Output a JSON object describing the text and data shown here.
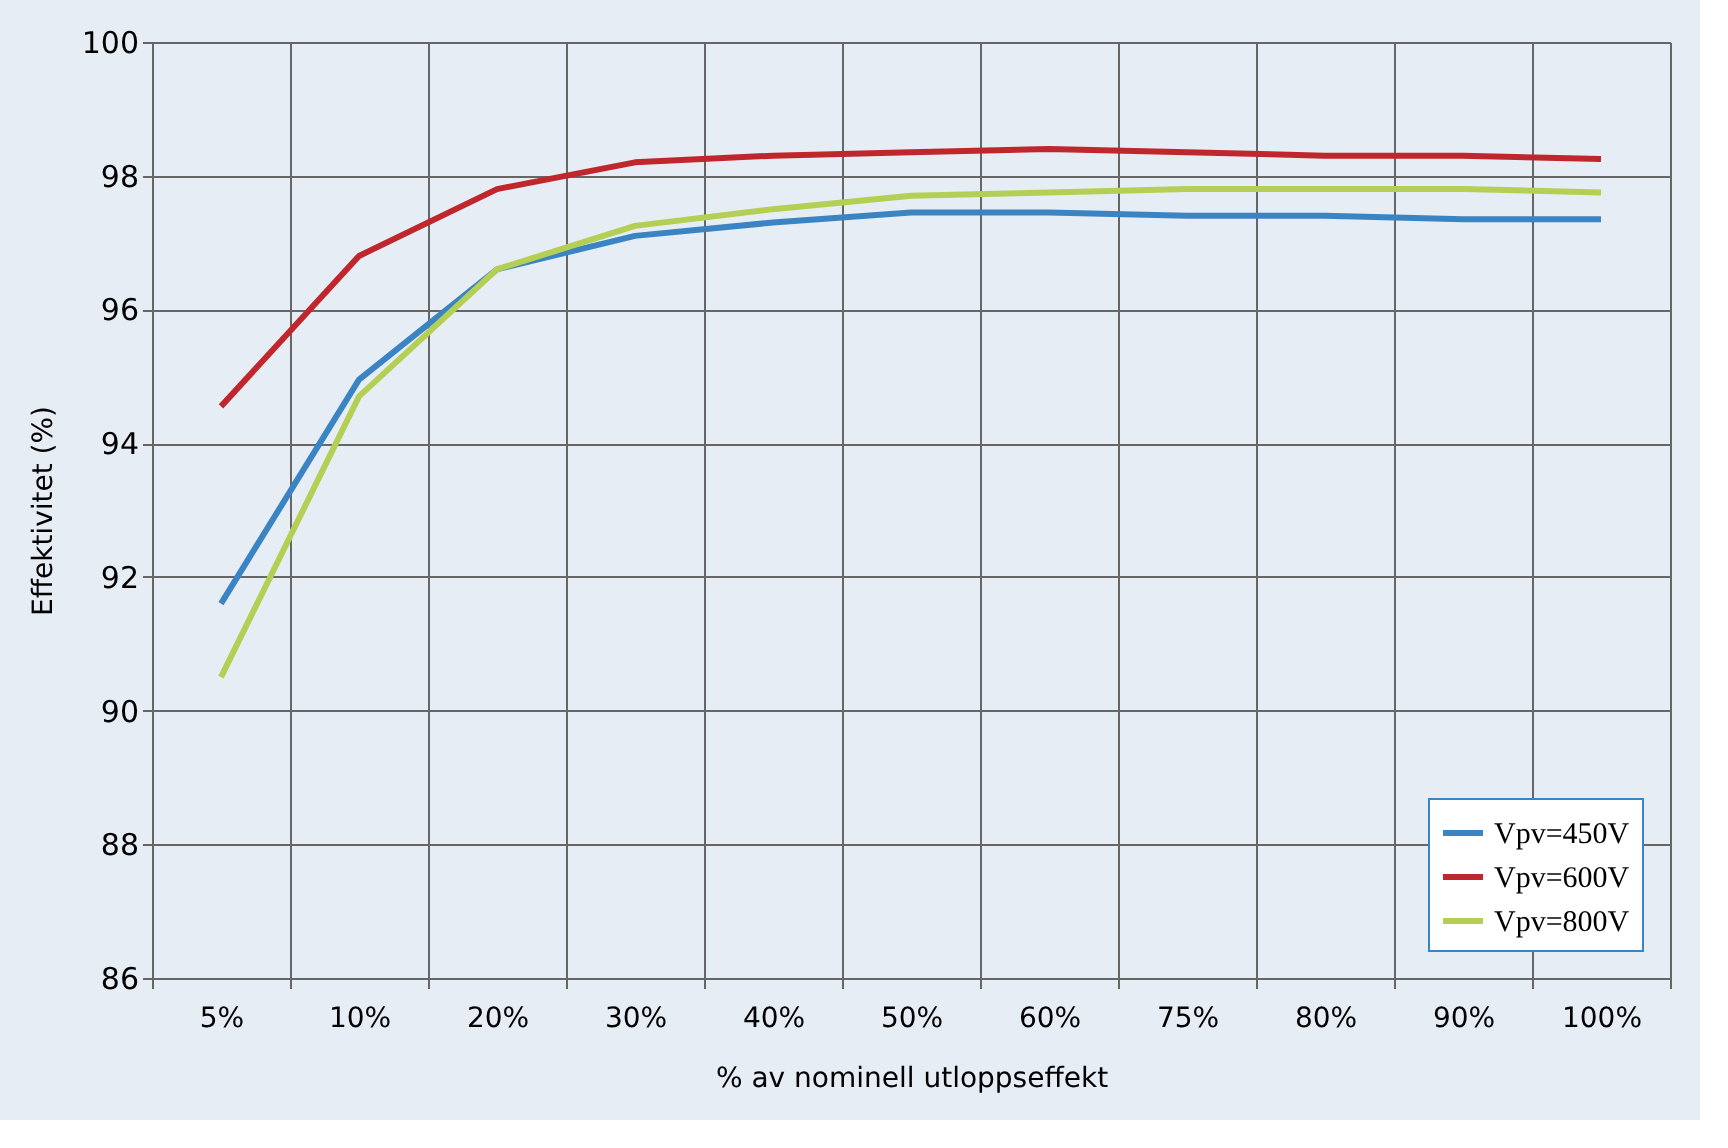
{
  "chart_data": {
    "type": "line",
    "xlabel": "% av nominell utloppseffekt",
    "ylabel": "Effektivitet (%)",
    "categories": [
      "5%",
      "10%",
      "20%",
      "30%",
      "40%",
      "50%",
      "60%",
      "75%",
      "80%",
      "90%",
      "100%"
    ],
    "series": [
      {
        "name": "Vpv=450V",
        "color": "#3b84c4",
        "values": [
          91.6,
          94.95,
          96.6,
          97.1,
          97.3,
          97.45,
          97.45,
          97.4,
          97.4,
          97.35,
          97.35
        ]
      },
      {
        "name": "Vpv=600V",
        "color": "#c0272d",
        "values": [
          94.55,
          96.8,
          97.8,
          98.2,
          98.3,
          98.35,
          98.4,
          98.35,
          98.3,
          98.3,
          98.25
        ]
      },
      {
        "name": "Vpv=800V",
        "color": "#b5cf54",
        "values": [
          90.5,
          94.7,
          96.6,
          97.25,
          97.5,
          97.7,
          97.75,
          97.8,
          97.8,
          97.8,
          97.75
        ]
      }
    ],
    "ylim": [
      86,
      100
    ],
    "yticks": [
      86,
      88,
      90,
      92,
      94,
      96,
      98,
      100
    ],
    "grid": true,
    "legend": "bottom right",
    "line_style": "solid",
    "marker": "none"
  }
}
